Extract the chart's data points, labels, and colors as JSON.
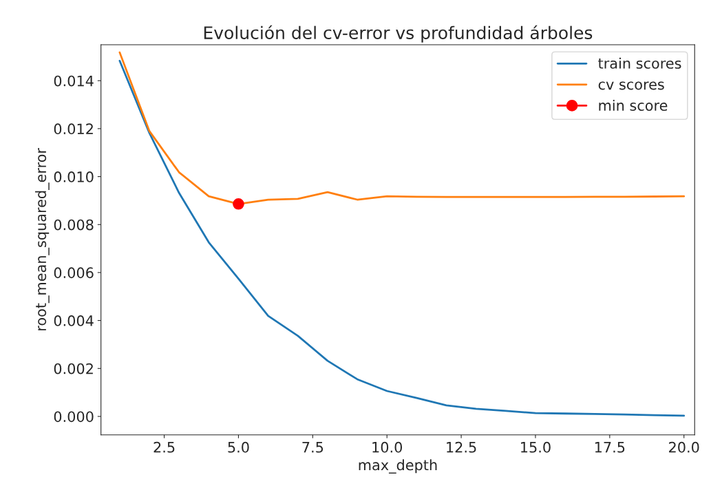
{
  "chart_data": {
    "type": "line",
    "title": "Evolución del cv-error vs profundidad árboles",
    "xlabel": "max_depth",
    "ylabel": "root_mean_squared_error",
    "series": [
      {
        "name": "train scores",
        "color": "#1f77b4",
        "x": [
          1,
          2,
          3,
          4,
          5,
          6,
          7,
          8,
          9,
          10,
          11,
          12,
          13,
          14,
          15,
          16,
          17,
          18,
          19,
          20
        ],
        "values": [
          0.01483,
          0.01182,
          0.00932,
          0.00726,
          0.00574,
          0.00419,
          0.00336,
          0.00232,
          0.00155,
          0.00106,
          0.00077,
          0.00046,
          0.00032,
          0.00023,
          0.00014,
          0.00012,
          0.0001,
          8e-05,
          5e-05,
          3e-05
        ]
      },
      {
        "name": "cv scores",
        "color": "#ff7f0e",
        "x": [
          1,
          2,
          3,
          4,
          5,
          6,
          7,
          8,
          9,
          10,
          11,
          12,
          13,
          14,
          15,
          16,
          17,
          18,
          19,
          20
        ],
        "values": [
          0.01518,
          0.0119,
          0.01018,
          0.00918,
          0.00886,
          0.00904,
          0.00907,
          0.00935,
          0.00904,
          0.00918,
          0.00916,
          0.00915,
          0.00915,
          0.00915,
          0.00915,
          0.00915,
          0.00916,
          0.00916,
          0.00917,
          0.00918
        ]
      },
      {
        "name": "min score",
        "color": "#ff0000",
        "type": "line",
        "marker": "circle",
        "x": [
          5
        ],
        "values": [
          0.00886
        ]
      }
    ],
    "xlim": [
      0.37,
      20.36
    ],
    "ylim": [
      -0.00077,
      0.0155
    ],
    "xticks": [
      {
        "value": 2.5,
        "label": "2.5"
      },
      {
        "value": 5,
        "label": "5.0"
      },
      {
        "value": 7.5,
        "label": "7.5"
      },
      {
        "value": 10,
        "label": "10.0"
      },
      {
        "value": 12.5,
        "label": "12.5"
      },
      {
        "value": 15,
        "label": "15.0"
      },
      {
        "value": 17.5,
        "label": "17.5"
      },
      {
        "value": 20,
        "label": "20.0"
      }
    ],
    "yticks": [
      {
        "value": 0,
        "label": "0.000"
      },
      {
        "value": 0.002,
        "label": "0.002"
      },
      {
        "value": 0.004,
        "label": "0.004"
      },
      {
        "value": 0.006,
        "label": "0.006"
      },
      {
        "value": 0.008,
        "label": "0.008"
      },
      {
        "value": 0.01,
        "label": "0.010"
      },
      {
        "value": 0.012,
        "label": "0.012"
      },
      {
        "value": 0.014,
        "label": "0.014"
      }
    ],
    "grid": false,
    "legend": "top right"
  }
}
